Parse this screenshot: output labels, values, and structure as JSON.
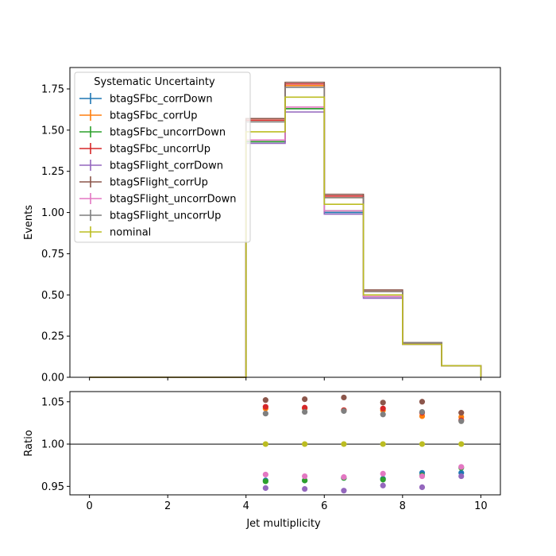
{
  "chart_data": [
    {
      "type": "line",
      "drawstyle": "steps",
      "title": "",
      "xlabel": "",
      "ylabel": "Events",
      "xlim": [
        -0.5,
        10.5
      ],
      "ylim": [
        0,
        1.88
      ],
      "yticks": [
        0.0,
        0.25,
        0.5,
        0.75,
        1.0,
        1.25,
        1.5,
        1.75
      ],
      "ytick_labels": [
        "0.00",
        "0.25",
        "0.50",
        "0.75",
        "1.00",
        "1.25",
        "1.50",
        "1.75"
      ],
      "legend": {
        "title": "Systematic Uncertainty",
        "position": "top-left"
      },
      "bin_edges": [
        0,
        1,
        2,
        3,
        4,
        5,
        6,
        7,
        8,
        9,
        10
      ],
      "series": [
        {
          "name": "btagSFbc_corrDown",
          "color": "#1f77b4",
          "values": [
            0,
            0,
            0,
            0,
            1.43,
            1.63,
            1.0,
            0.49,
            0.2,
            0.07
          ]
        },
        {
          "name": "btagSFbc_corrUp",
          "color": "#ff7f0e",
          "values": [
            0,
            0,
            0,
            0,
            1.56,
            1.77,
            1.09,
            0.52,
            0.21,
            0.07
          ]
        },
        {
          "name": "btagSFbc_uncorrDown",
          "color": "#2ca02c",
          "values": [
            0,
            0,
            0,
            0,
            1.43,
            1.63,
            1.01,
            0.49,
            0.2,
            0.07
          ]
        },
        {
          "name": "btagSFbc_uncorrUp",
          "color": "#d62728",
          "values": [
            0,
            0,
            0,
            0,
            1.56,
            1.78,
            1.1,
            0.52,
            0.21,
            0.07
          ]
        },
        {
          "name": "btagSFlight_corrDown",
          "color": "#9467bd",
          "values": [
            0,
            0,
            0,
            0,
            1.42,
            1.61,
            0.99,
            0.48,
            0.2,
            0.07
          ]
        },
        {
          "name": "btagSFlight_corrUp",
          "color": "#8c564b",
          "values": [
            0,
            0,
            0,
            0,
            1.57,
            1.79,
            1.11,
            0.53,
            0.21,
            0.07
          ]
        },
        {
          "name": "btagSFlight_uncorrDown",
          "color": "#e377c2",
          "values": [
            0,
            0,
            0,
            0,
            1.44,
            1.64,
            1.01,
            0.49,
            0.2,
            0.07
          ]
        },
        {
          "name": "btagSFlight_uncorrUp",
          "color": "#7f7f7f",
          "values": [
            0,
            0,
            0,
            0,
            1.55,
            1.76,
            1.09,
            0.52,
            0.21,
            0.07
          ]
        },
        {
          "name": "nominal",
          "color": "#bcbd22",
          "values": [
            0,
            0,
            0,
            0,
            1.49,
            1.7,
            1.05,
            0.5,
            0.2,
            0.07
          ]
        }
      ]
    },
    {
      "type": "scatter",
      "title": "",
      "xlabel": "Jet multiplicity",
      "ylabel": "Ratio",
      "xlim": [
        -0.5,
        10.5
      ],
      "ylim": [
        0.94,
        1.062
      ],
      "xticks": [
        0,
        2,
        4,
        6,
        8,
        10
      ],
      "xtick_labels": [
        "0",
        "2",
        "4",
        "6",
        "8",
        "10"
      ],
      "yticks": [
        0.95,
        1.0,
        1.05
      ],
      "ytick_labels": [
        "0.95",
        "1.00",
        "1.05"
      ],
      "reference_line": 1.0,
      "x": [
        4.5,
        5.5,
        6.5,
        7.5,
        8.5,
        9.5
      ],
      "series": [
        {
          "name": "btagSFbc_corrDown",
          "color": "#1f77b4",
          "values": [
            0.957,
            0.957,
            0.96,
            0.959,
            0.966,
            0.966
          ]
        },
        {
          "name": "btagSFbc_corrUp",
          "color": "#ff7f0e",
          "values": [
            1.042,
            1.042,
            1.04,
            1.04,
            1.033,
            1.032
          ]
        },
        {
          "name": "btagSFbc_uncorrDown",
          "color": "#2ca02c",
          "values": [
            0.956,
            0.957,
            0.96,
            0.958,
            0.963,
            0.972
          ]
        },
        {
          "name": "btagSFbc_uncorrUp",
          "color": "#d62728",
          "values": [
            1.044,
            1.043,
            1.04,
            1.042,
            1.037,
            1.028
          ]
        },
        {
          "name": "btagSFlight_corrDown",
          "color": "#9467bd",
          "values": [
            0.948,
            0.947,
            0.945,
            0.951,
            0.949,
            0.962
          ]
        },
        {
          "name": "btagSFlight_corrUp",
          "color": "#8c564b",
          "values": [
            1.052,
            1.053,
            1.055,
            1.049,
            1.05,
            1.037
          ]
        },
        {
          "name": "btagSFlight_uncorrDown",
          "color": "#e377c2",
          "values": [
            0.964,
            0.962,
            0.961,
            0.965,
            0.962,
            0.973
          ]
        },
        {
          "name": "btagSFlight_uncorrUp",
          "color": "#7f7f7f",
          "values": [
            1.036,
            1.038,
            1.039,
            1.035,
            1.038,
            1.027
          ]
        },
        {
          "name": "nominal",
          "color": "#bcbd22",
          "values": [
            1.0,
            1.0,
            1.0,
            1.0,
            1.0,
            1.0
          ]
        }
      ]
    }
  ]
}
